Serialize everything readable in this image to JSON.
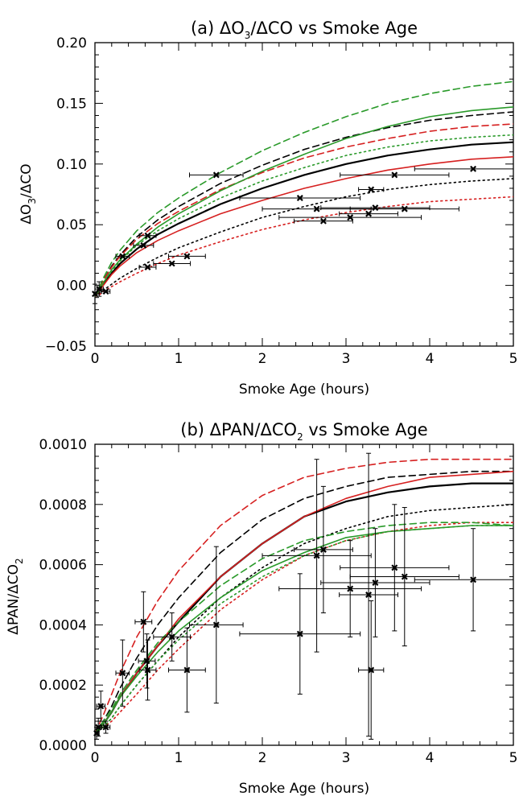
{
  "colors": {
    "black": "#000000",
    "red": "#d62020",
    "green": "#2a9a2a"
  },
  "chart_data": [
    {
      "id": "a",
      "type": "line",
      "title": "(a) ΔO₃/ΔCO vs Smoke Age",
      "title_main": "(a) ΔO",
      "title_sub": "3",
      "title_rest": "/ΔCO vs Smoke Age",
      "xlabel": "Smoke Age (hours)",
      "ylabel": "ΔO₃/ΔCO",
      "ylabel_main": "ΔO",
      "ylabel_sub": "3",
      "ylabel_rest": "/ΔCO",
      "xlim": [
        0,
        5
      ],
      "ylim": [
        -0.05,
        0.2
      ],
      "xticks": [
        "0",
        "1",
        "2",
        "3",
        "4",
        "5"
      ],
      "yticks": [
        "−0.05",
        "0.00",
        "0.05",
        "0.10",
        "0.15",
        "0.20"
      ],
      "series": [
        {
          "color": "black",
          "style": "solid",
          "width": 2.2,
          "x": [
            0,
            0.05,
            0.1,
            0.2,
            0.3,
            0.5,
            0.75,
            1,
            1.5,
            2,
            2.5,
            3,
            3.5,
            4,
            4.5,
            5
          ],
          "y": [
            -0.009,
            -0.005,
            0.001,
            0.01,
            0.018,
            0.03,
            0.042,
            0.051,
            0.067,
            0.08,
            0.091,
            0.1,
            0.107,
            0.112,
            0.116,
            0.118
          ]
        },
        {
          "color": "black",
          "style": "dash",
          "width": 1.6,
          "x": [
            0,
            0.05,
            0.1,
            0.2,
            0.3,
            0.5,
            0.75,
            1,
            1.5,
            2,
            2.5,
            3,
            3.5,
            4,
            4.5,
            5
          ],
          "y": [
            -0.009,
            -0.003,
            0.004,
            0.016,
            0.025,
            0.04,
            0.054,
            0.065,
            0.084,
            0.099,
            0.112,
            0.122,
            0.13,
            0.136,
            0.14,
            0.143
          ]
        },
        {
          "color": "black",
          "style": "dot",
          "width": 1.6,
          "x": [
            0,
            0.05,
            0.1,
            0.2,
            0.3,
            0.5,
            0.75,
            1,
            1.5,
            2,
            2.5,
            3,
            3.5,
            4,
            4.5,
            5
          ],
          "y": [
            -0.009,
            -0.007,
            -0.004,
            0.001,
            0.006,
            0.014,
            0.023,
            0.031,
            0.044,
            0.056,
            0.065,
            0.073,
            0.079,
            0.083,
            0.086,
            0.088
          ]
        },
        {
          "color": "red",
          "style": "solid",
          "width": 1.6,
          "x": [
            0,
            0.05,
            0.1,
            0.2,
            0.3,
            0.5,
            0.75,
            1,
            1.5,
            2,
            2.5,
            3,
            3.5,
            4,
            4.5,
            5
          ],
          "y": [
            -0.009,
            -0.005,
            0.0,
            0.009,
            0.016,
            0.027,
            0.037,
            0.045,
            0.059,
            0.07,
            0.08,
            0.088,
            0.095,
            0.1,
            0.104,
            0.106
          ]
        },
        {
          "color": "red",
          "style": "dash",
          "width": 1.6,
          "x": [
            0,
            0.05,
            0.1,
            0.2,
            0.3,
            0.5,
            0.75,
            1,
            1.5,
            2,
            2.5,
            3,
            3.5,
            4,
            4.5,
            5
          ],
          "y": [
            -0.009,
            -0.003,
            0.004,
            0.015,
            0.024,
            0.038,
            0.051,
            0.061,
            0.079,
            0.093,
            0.105,
            0.114,
            0.121,
            0.127,
            0.131,
            0.133
          ]
        },
        {
          "color": "red",
          "style": "dot",
          "width": 1.6,
          "x": [
            0,
            0.05,
            0.1,
            0.2,
            0.3,
            0.5,
            0.75,
            1,
            1.5,
            2,
            2.5,
            3,
            3.5,
            4,
            4.5,
            5
          ],
          "y": [
            -0.009,
            -0.008,
            -0.005,
            -0.001,
            0.003,
            0.01,
            0.018,
            0.025,
            0.036,
            0.046,
            0.054,
            0.06,
            0.065,
            0.069,
            0.071,
            0.073
          ]
        },
        {
          "color": "green",
          "style": "solid",
          "width": 1.6,
          "x": [
            0,
            0.05,
            0.1,
            0.2,
            0.3,
            0.5,
            0.75,
            1,
            1.5,
            2,
            2.5,
            3,
            3.5,
            4,
            4.5,
            5
          ],
          "y": [
            -0.009,
            -0.004,
            0.002,
            0.013,
            0.021,
            0.034,
            0.048,
            0.059,
            0.078,
            0.094,
            0.108,
            0.121,
            0.131,
            0.139,
            0.144,
            0.147
          ]
        },
        {
          "color": "green",
          "style": "dash",
          "width": 1.6,
          "x": [
            0,
            0.05,
            0.1,
            0.2,
            0.3,
            0.5,
            0.75,
            1,
            1.5,
            2,
            2.5,
            3,
            3.5,
            4,
            4.5,
            5
          ],
          "y": [
            -0.009,
            -0.002,
            0.006,
            0.019,
            0.029,
            0.045,
            0.06,
            0.072,
            0.093,
            0.111,
            0.126,
            0.139,
            0.15,
            0.158,
            0.164,
            0.168
          ]
        },
        {
          "color": "green",
          "style": "dot",
          "width": 1.6,
          "x": [
            0,
            0.05,
            0.1,
            0.2,
            0.3,
            0.5,
            0.75,
            1,
            1.5,
            2,
            2.5,
            3,
            3.5,
            4,
            4.5,
            5
          ],
          "y": [
            -0.009,
            -0.004,
            0.002,
            0.012,
            0.02,
            0.033,
            0.045,
            0.055,
            0.072,
            0.086,
            0.097,
            0.107,
            0.114,
            0.119,
            0.122,
            0.124
          ]
        }
      ],
      "points": [
        {
          "x": 0.0,
          "y": -0.007,
          "xerr": 0.05,
          "yerr": 0.008
        },
        {
          "x": 0.05,
          "y": -0.003,
          "xerr": 0.05,
          "yerr": 0.006
        },
        {
          "x": 0.13,
          "y": -0.005,
          "xerr": 0.05,
          "yerr": 0.0
        },
        {
          "x": 0.33,
          "y": 0.024,
          "xerr": 0.08,
          "yerr": 0.0
        },
        {
          "x": 0.58,
          "y": 0.033,
          "xerr": 0.12,
          "yerr": 0.0
        },
        {
          "x": 0.63,
          "y": 0.041,
          "xerr": 0.1,
          "yerr": 0.0
        },
        {
          "x": 0.63,
          "y": 0.015,
          "xerr": 0.1,
          "yerr": 0.0
        },
        {
          "x": 0.92,
          "y": 0.018,
          "xerr": 0.22,
          "yerr": 0.0
        },
        {
          "x": 1.1,
          "y": 0.024,
          "xerr": 0.22,
          "yerr": 0.0
        },
        {
          "x": 1.45,
          "y": 0.091,
          "xerr": 0.32,
          "yerr": 0.0
        },
        {
          "x": 2.45,
          "y": 0.072,
          "xerr": 0.72,
          "yerr": 0.0
        },
        {
          "x": 2.65,
          "y": 0.063,
          "xerr": 0.65,
          "yerr": 0.0
        },
        {
          "x": 2.73,
          "y": 0.053,
          "xerr": 0.35,
          "yerr": 0.0
        },
        {
          "x": 3.05,
          "y": 0.056,
          "xerr": 0.85,
          "yerr": 0.0
        },
        {
          "x": 3.27,
          "y": 0.059,
          "xerr": 0.35,
          "yerr": 0.0
        },
        {
          "x": 3.3,
          "y": 0.079,
          "xerr": 0.15,
          "yerr": 0.0
        },
        {
          "x": 3.35,
          "y": 0.064,
          "xerr": 0.65,
          "yerr": 0.0
        },
        {
          "x": 3.58,
          "y": 0.091,
          "xerr": 0.65,
          "yerr": 0.0
        },
        {
          "x": 3.7,
          "y": 0.063,
          "xerr": 0.65,
          "yerr": 0.0
        },
        {
          "x": 4.52,
          "y": 0.096,
          "xerr": 0.7,
          "yerr": 0.0
        }
      ]
    },
    {
      "id": "b",
      "type": "line",
      "title": "(b) ΔPAN/ΔCO₂ vs Smoke Age",
      "title_main": "(b) ΔPAN/ΔCO",
      "title_sub": "2",
      "title_rest": " vs Smoke Age",
      "xlabel": "Smoke Age (hours)",
      "ylabel": "ΔPAN/ΔCO₂",
      "ylabel_main": "ΔPAN/ΔCO",
      "ylabel_sub": "2",
      "ylabel_rest": "",
      "xlim": [
        0,
        5
      ],
      "ylim": [
        0,
        0.001
      ],
      "xticks": [
        "0",
        "1",
        "2",
        "3",
        "4",
        "5"
      ],
      "yticks": [
        "0.0000",
        "0.0002",
        "0.0004",
        "0.0006",
        "0.0008",
        "0.0010"
      ],
      "series": [
        {
          "color": "black",
          "style": "solid",
          "width": 2.2,
          "x": [
            0,
            0.1,
            0.2,
            0.3,
            0.5,
            0.75,
            1,
            1.5,
            2,
            2.5,
            3,
            3.5,
            4,
            4.5,
            5
          ],
          "y": [
            4e-05,
            7e-05,
            0.00011,
            0.00016,
            0.00024,
            0.00033,
            0.00041,
            0.00056,
            0.00067,
            0.00076,
            0.00081,
            0.00084,
            0.00086,
            0.00087,
            0.00087
          ]
        },
        {
          "color": "black",
          "style": "dash",
          "width": 1.6,
          "x": [
            0,
            0.1,
            0.2,
            0.3,
            0.5,
            0.75,
            1,
            1.5,
            2,
            2.5,
            3,
            3.5,
            4,
            4.5,
            5
          ],
          "y": [
            4e-05,
            8e-05,
            0.00013,
            0.00019,
            0.00029,
            0.0004,
            0.00049,
            0.00064,
            0.00075,
            0.00082,
            0.00086,
            0.00089,
            0.0009,
            0.00091,
            0.00091
          ]
        },
        {
          "color": "black",
          "style": "dot",
          "width": 1.6,
          "x": [
            0,
            0.1,
            0.2,
            0.3,
            0.5,
            0.75,
            1,
            1.5,
            2,
            2.5,
            3,
            3.5,
            4,
            4.5,
            5
          ],
          "y": [
            4e-05,
            6e-05,
            9e-05,
            0.00013,
            0.0002,
            0.00028,
            0.00036,
            0.00049,
            0.00059,
            0.00067,
            0.00072,
            0.00076,
            0.00078,
            0.00079,
            0.0008
          ]
        },
        {
          "color": "red",
          "style": "solid",
          "width": 1.6,
          "x": [
            0,
            0.1,
            0.2,
            0.3,
            0.5,
            0.75,
            1,
            1.5,
            2,
            2.5,
            3,
            3.5,
            4,
            4.5,
            5
          ],
          "y": [
            4e-05,
            7e-05,
            0.00011,
            0.00016,
            0.00024,
            0.00033,
            0.00042,
            0.00056,
            0.00067,
            0.00076,
            0.00082,
            0.00086,
            0.00089,
            0.0009,
            0.00091
          ]
        },
        {
          "color": "red",
          "style": "dash",
          "width": 1.6,
          "x": [
            0,
            0.1,
            0.2,
            0.3,
            0.5,
            0.75,
            1,
            1.5,
            2,
            2.5,
            3,
            3.5,
            4,
            4.5,
            5
          ],
          "y": [
            4e-05,
            0.0001,
            0.00017,
            0.00024,
            0.00036,
            0.00048,
            0.00058,
            0.00073,
            0.00083,
            0.00089,
            0.00092,
            0.00094,
            0.00095,
            0.00095,
            0.00095
          ]
        },
        {
          "color": "red",
          "style": "dot",
          "width": 1.6,
          "x": [
            0,
            0.1,
            0.2,
            0.3,
            0.5,
            0.75,
            1,
            1.5,
            2,
            2.5,
            3,
            3.5,
            4,
            4.5,
            5
          ],
          "y": [
            4e-05,
            6e-05,
            8e-05,
            0.00011,
            0.00017,
            0.00025,
            0.00032,
            0.00045,
            0.00055,
            0.00063,
            0.00068,
            0.00071,
            0.00073,
            0.00074,
            0.00074
          ]
        },
        {
          "color": "green",
          "style": "solid",
          "width": 1.6,
          "x": [
            0,
            0.1,
            0.2,
            0.3,
            0.5,
            0.75,
            1,
            1.5,
            2,
            2.5,
            3,
            3.5,
            4,
            4.5,
            5
          ],
          "y": [
            4e-05,
            7e-05,
            0.00011,
            0.00016,
            0.00023,
            0.00031,
            0.00038,
            0.00049,
            0.00058,
            0.00064,
            0.00069,
            0.00071,
            0.00072,
            0.00073,
            0.00073
          ]
        },
        {
          "color": "green",
          "style": "dash",
          "width": 1.6,
          "x": [
            0,
            0.1,
            0.2,
            0.3,
            0.5,
            0.75,
            1,
            1.5,
            2,
            2.5,
            3,
            3.5,
            4,
            4.5,
            5
          ],
          "y": [
            4e-05,
            8e-05,
            0.00012,
            0.00017,
            0.00025,
            0.00034,
            0.00041,
            0.00053,
            0.00062,
            0.00068,
            0.00071,
            0.00073,
            0.00074,
            0.00074,
            0.00073
          ]
        },
        {
          "color": "green",
          "style": "dot",
          "width": 1.6,
          "x": [
            0,
            0.1,
            0.2,
            0.3,
            0.5,
            0.75,
            1,
            1.5,
            2,
            2.5,
            3,
            3.5,
            4,
            4.5,
            5
          ],
          "y": [
            4e-05,
            6e-05,
            9e-05,
            0.00013,
            0.0002,
            0.00028,
            0.00035,
            0.00047,
            0.00056,
            0.00063,
            0.00068,
            0.00071,
            0.00072,
            0.00073,
            0.00073
          ]
        }
      ],
      "points": [
        {
          "x": 0.02,
          "y": 4e-05,
          "xerr": 0.03,
          "yerr": 2e-05
        },
        {
          "x": 0.04,
          "y": 6e-05,
          "xerr": 0.04,
          "yerr": 3e-05
        },
        {
          "x": 0.07,
          "y": 0.00013,
          "xerr": 0.05,
          "yerr": 5e-05
        },
        {
          "x": 0.13,
          "y": 6e-05,
          "xerr": 0.05,
          "yerr": 2e-05
        },
        {
          "x": 0.33,
          "y": 0.00024,
          "xerr": 0.08,
          "yerr": 0.00011
        },
        {
          "x": 0.58,
          "y": 0.00041,
          "xerr": 0.1,
          "yerr": 0.0001
        },
        {
          "x": 0.62,
          "y": 0.00028,
          "xerr": 0.1,
          "yerr": 9e-05
        },
        {
          "x": 0.63,
          "y": 0.00025,
          "xerr": 0.1,
          "yerr": 0.0001
        },
        {
          "x": 0.92,
          "y": 0.00036,
          "xerr": 0.22,
          "yerr": 8e-05
        },
        {
          "x": 1.1,
          "y": 0.00025,
          "xerr": 0.22,
          "yerr": 0.00014
        },
        {
          "x": 1.45,
          "y": 0.0004,
          "xerr": 0.32,
          "yerr": 0.00026
        },
        {
          "x": 2.45,
          "y": 0.00037,
          "xerr": 0.72,
          "yerr": 0.0002
        },
        {
          "x": 2.65,
          "y": 0.00063,
          "xerr": 0.65,
          "yerr": 0.00032
        },
        {
          "x": 2.73,
          "y": 0.00065,
          "xerr": 0.35,
          "yerr": 0.00021
        },
        {
          "x": 3.05,
          "y": 0.00052,
          "xerr": 0.85,
          "yerr": 0.00016
        },
        {
          "x": 3.27,
          "y": 0.0005,
          "xerr": 0.35,
          "yerr": 0.00047
        },
        {
          "x": 3.3,
          "y": 0.00025,
          "xerr": 0.15,
          "yerr": 0.00023
        },
        {
          "x": 3.35,
          "y": 0.00054,
          "xerr": 0.65,
          "yerr": 0.00018
        },
        {
          "x": 3.58,
          "y": 0.00059,
          "xerr": 0.65,
          "yerr": 0.00021
        },
        {
          "x": 3.7,
          "y": 0.00056,
          "xerr": 0.65,
          "yerr": 0.00023
        },
        {
          "x": 4.52,
          "y": 0.00055,
          "xerr": 0.7,
          "yerr": 0.00017
        }
      ]
    }
  ]
}
